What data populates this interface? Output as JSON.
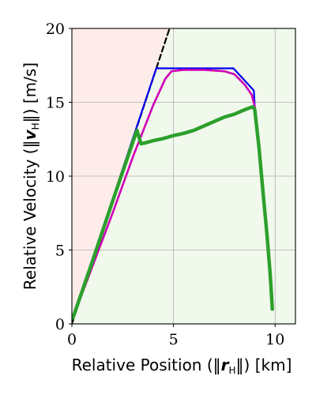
{
  "chart_data": {
    "type": "line",
    "xlabel": {
      "prefix": "Relative Position (",
      "norm_open": "‖",
      "symbol": "r",
      "subscript": "H",
      "norm_close": "‖",
      "suffix": ") [km]"
    },
    "ylabel": {
      "prefix": "Relative Velocity (",
      "norm_open": "‖",
      "symbol": "v",
      "subscript": "H",
      "norm_close": "‖",
      "suffix": ") [m/s]"
    },
    "xlim": [
      0,
      11
    ],
    "ylim": [
      0,
      20
    ],
    "xticks": [
      0,
      5,
      10
    ],
    "yticks": [
      0,
      5,
      10,
      15,
      20
    ],
    "xtick_labels": [
      "0",
      "5",
      "10"
    ],
    "ytick_labels": [
      "0",
      "5",
      "10",
      "15",
      "20"
    ],
    "grid": true,
    "regions": [
      {
        "color": "#fdecea",
        "polygon": [
          [
            0,
            0
          ],
          [
            0,
            20
          ],
          [
            4.8,
            20
          ]
        ]
      },
      {
        "color": "#f1f8ec",
        "polygon": [
          [
            0,
            0
          ],
          [
            4.8,
            20
          ],
          [
            11,
            20
          ],
          [
            11,
            0
          ]
        ]
      }
    ],
    "series": [
      {
        "color": "#000000",
        "style": "dashed",
        "width": 2.2,
        "x": [
          0,
          4.9
        ],
        "y": [
          0,
          20.4
        ]
      },
      {
        "color": "#0000ee",
        "style": "solid",
        "width": 2.2,
        "x": [
          0.05,
          4.15,
          7.95,
          8.95,
          9.0,
          9.2,
          9.4,
          9.6,
          9.75,
          9.82,
          9.85,
          9.86
        ],
        "y": [
          0.4,
          17.3,
          17.3,
          15.8,
          14.7,
          12.0,
          9.0,
          6.0,
          3.5,
          2.0,
          1.3,
          1.0
        ]
      },
      {
        "color": "#e0001b",
        "style": "solid",
        "width": 2.4,
        "x": [
          0.05,
          2.0,
          3.0,
          4.0,
          4.6,
          4.9,
          5.5,
          6.5,
          7.5,
          8.0,
          8.5,
          8.85,
          9.0,
          9.2,
          9.4,
          9.6,
          9.75,
          9.82,
          9.85,
          9.86
        ],
        "y": [
          0.4,
          7.5,
          11.3,
          14.8,
          16.6,
          17.1,
          17.2,
          17.2,
          17.1,
          16.9,
          16.2,
          15.5,
          14.7,
          12.0,
          9.0,
          6.0,
          3.5,
          2.0,
          1.3,
          1.0
        ]
      },
      {
        "color": "#cc00cc",
        "style": "dashed",
        "width": 2.6,
        "x": [
          0.05,
          2.0,
          3.0,
          4.0,
          4.6,
          4.9,
          5.5,
          6.5,
          7.5,
          8.0,
          8.5,
          8.85,
          9.0,
          9.2,
          9.4,
          9.6,
          9.75,
          9.82,
          9.85,
          9.86
        ],
        "y": [
          0.4,
          7.5,
          11.3,
          14.8,
          16.6,
          17.1,
          17.2,
          17.2,
          17.1,
          16.9,
          16.2,
          15.5,
          14.7,
          12.0,
          9.0,
          6.0,
          3.5,
          2.0,
          1.3,
          1.0
        ]
      },
      {
        "color": "#2ca02c",
        "style": "thick",
        "width": 4.5,
        "x": [
          0.05,
          1.0,
          2.0,
          2.8,
          3.2,
          3.4,
          3.6,
          4.0,
          4.5,
          5.0,
          5.5,
          6.0,
          6.5,
          7.0,
          7.5,
          8.0,
          8.5,
          8.9,
          9.0,
          9.2,
          9.4,
          9.6,
          9.75,
          9.82,
          9.85,
          9.86
        ],
        "y": [
          0.4,
          4.2,
          8.3,
          11.5,
          13.1,
          12.2,
          12.25,
          12.4,
          12.55,
          12.75,
          12.9,
          13.1,
          13.4,
          13.7,
          14.0,
          14.2,
          14.5,
          14.7,
          14.5,
          12.0,
          9.0,
          6.0,
          3.5,
          2.0,
          1.3,
          1.0
        ]
      }
    ]
  }
}
